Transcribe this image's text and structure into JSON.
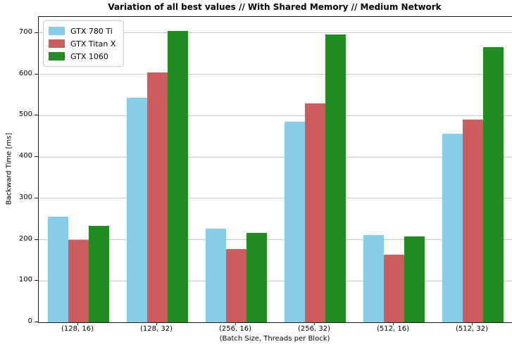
{
  "chart_data": {
    "type": "bar",
    "title": "Variation of all best values // With Shared Memory // Medium Network",
    "xlabel": "(Batch Size, Threads per Block)",
    "ylabel": "Backward Time [ms]",
    "categories": [
      "(128, 16)",
      "(128, 32)",
      "(256, 16)",
      "(256, 32)",
      "(512, 16)",
      "(512, 32)"
    ],
    "series": [
      {
        "name": "GTX 780 Ti",
        "color": "#87CEEB",
        "values": [
          256,
          543,
          226,
          485,
          211,
          456
        ]
      },
      {
        "name": "GTX Titan X",
        "color": "#CD5C5C",
        "values": [
          200,
          605,
          177,
          530,
          164,
          490
        ]
      },
      {
        "name": "GTX 1060",
        "color": "#228B22",
        "values": [
          234,
          705,
          217,
          696,
          208,
          665
        ]
      }
    ],
    "ylim": [
      0,
      739
    ],
    "yticks": [
      0,
      100,
      200,
      300,
      400,
      500,
      600,
      700
    ],
    "grid": true,
    "legend_position": "upper left",
    "colors": {
      "gridline": "#c8c8c8",
      "spine": "#1a1a1a",
      "background": "#ffffff"
    }
  }
}
